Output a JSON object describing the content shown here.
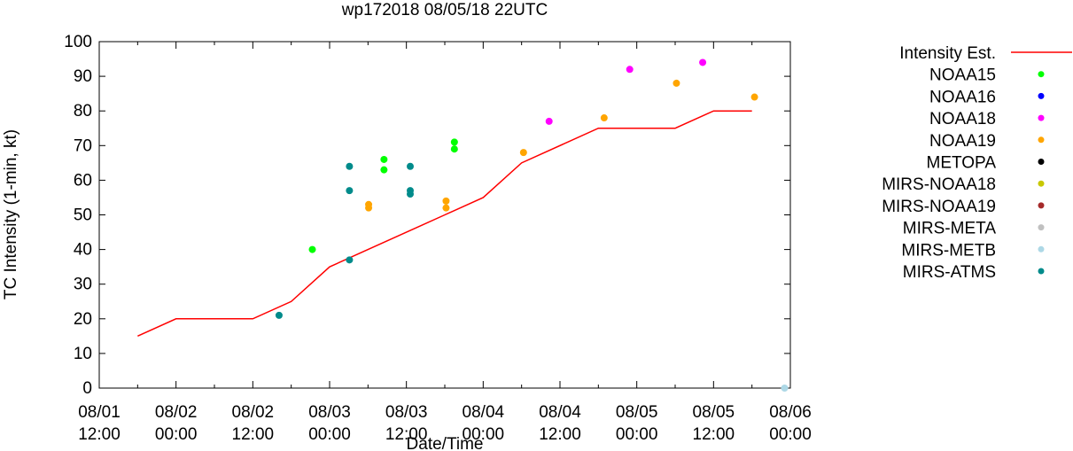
{
  "chart_data": {
    "type": "scatter",
    "title": "wp172018 08/05/18 22UTC",
    "xlabel": "Date/Time",
    "ylabel": "TC Intensity (1-min, kt)",
    "xlim": [
      12,
      120
    ],
    "ylim": [
      0,
      100
    ],
    "x_unit": "hours since 08/01 00:00",
    "yticks": [
      0,
      10,
      20,
      30,
      40,
      50,
      60,
      70,
      80,
      90,
      100
    ],
    "xticks": [
      {
        "x": 12,
        "date": "08/01",
        "time": "12:00"
      },
      {
        "x": 24,
        "date": "08/02",
        "time": "00:00"
      },
      {
        "x": 36,
        "date": "08/02",
        "time": "12:00"
      },
      {
        "x": 48,
        "date": "08/03",
        "time": "00:00"
      },
      {
        "x": 60,
        "date": "08/03",
        "time": "12:00"
      },
      {
        "x": 72,
        "date": "08/04",
        "time": "00:00"
      },
      {
        "x": 84,
        "date": "08/04",
        "time": "12:00"
      },
      {
        "x": 96,
        "date": "08/05",
        "time": "00:00"
      },
      {
        "x": 108,
        "date": "08/05",
        "time": "12:00"
      },
      {
        "x": 120,
        "date": "08/06",
        "time": "00:00"
      }
    ],
    "legend_position": "right",
    "series": [
      {
        "name": "Intensity Est.",
        "kind": "line",
        "color": "#ff0000",
        "points": [
          [
            18,
            15
          ],
          [
            24,
            20
          ],
          [
            36,
            20
          ],
          [
            42,
            25
          ],
          [
            48,
            35
          ],
          [
            54,
            40
          ],
          [
            66,
            50
          ],
          [
            72,
            55
          ],
          [
            78,
            65
          ],
          [
            90,
            75
          ],
          [
            102,
            75
          ],
          [
            108,
            80
          ],
          [
            114,
            80
          ]
        ]
      },
      {
        "name": "NOAA15",
        "kind": "points",
        "color": "#00ff00",
        "points": [
          [
            45.3,
            40
          ],
          [
            56.5,
            66
          ],
          [
            56.5,
            63
          ],
          [
            67.5,
            71
          ],
          [
            67.5,
            69
          ]
        ]
      },
      {
        "name": "NOAA16",
        "kind": "points",
        "color": "#0000ff",
        "points": []
      },
      {
        "name": "NOAA18",
        "kind": "points",
        "color": "#ff00ff",
        "points": [
          [
            82.3,
            77
          ],
          [
            94.9,
            92
          ],
          [
            106.3,
            94
          ]
        ]
      },
      {
        "name": "NOAA19",
        "kind": "points",
        "color": "#ffa500",
        "points": [
          [
            54.1,
            53
          ],
          [
            54.1,
            52
          ],
          [
            66.2,
            54
          ],
          [
            66.2,
            52
          ],
          [
            78.3,
            68
          ],
          [
            90.9,
            78
          ],
          [
            102.2,
            88
          ],
          [
            114.4,
            84
          ]
        ]
      },
      {
        "name": "METOPA",
        "kind": "points",
        "color": "#000000",
        "points": []
      },
      {
        "name": "MIRS-NOAA18",
        "kind": "points",
        "color": "#c8c800",
        "points": []
      },
      {
        "name": "MIRS-NOAA19",
        "kind": "points",
        "color": "#a52a2a",
        "points": []
      },
      {
        "name": "MIRS-META",
        "kind": "points",
        "color": "#c0c0c0",
        "points": []
      },
      {
        "name": "MIRS-METB",
        "kind": "points",
        "color": "#add8e6",
        "points": [
          [
            119.1,
            0
          ]
        ]
      },
      {
        "name": "MIRS-ATMS",
        "kind": "points",
        "color": "#008b8b",
        "points": [
          [
            40.1,
            21
          ],
          [
            51.1,
            64
          ],
          [
            51.1,
            57
          ],
          [
            51.1,
            37
          ],
          [
            60.6,
            64
          ],
          [
            60.6,
            57
          ],
          [
            60.6,
            56
          ]
        ]
      }
    ]
  }
}
